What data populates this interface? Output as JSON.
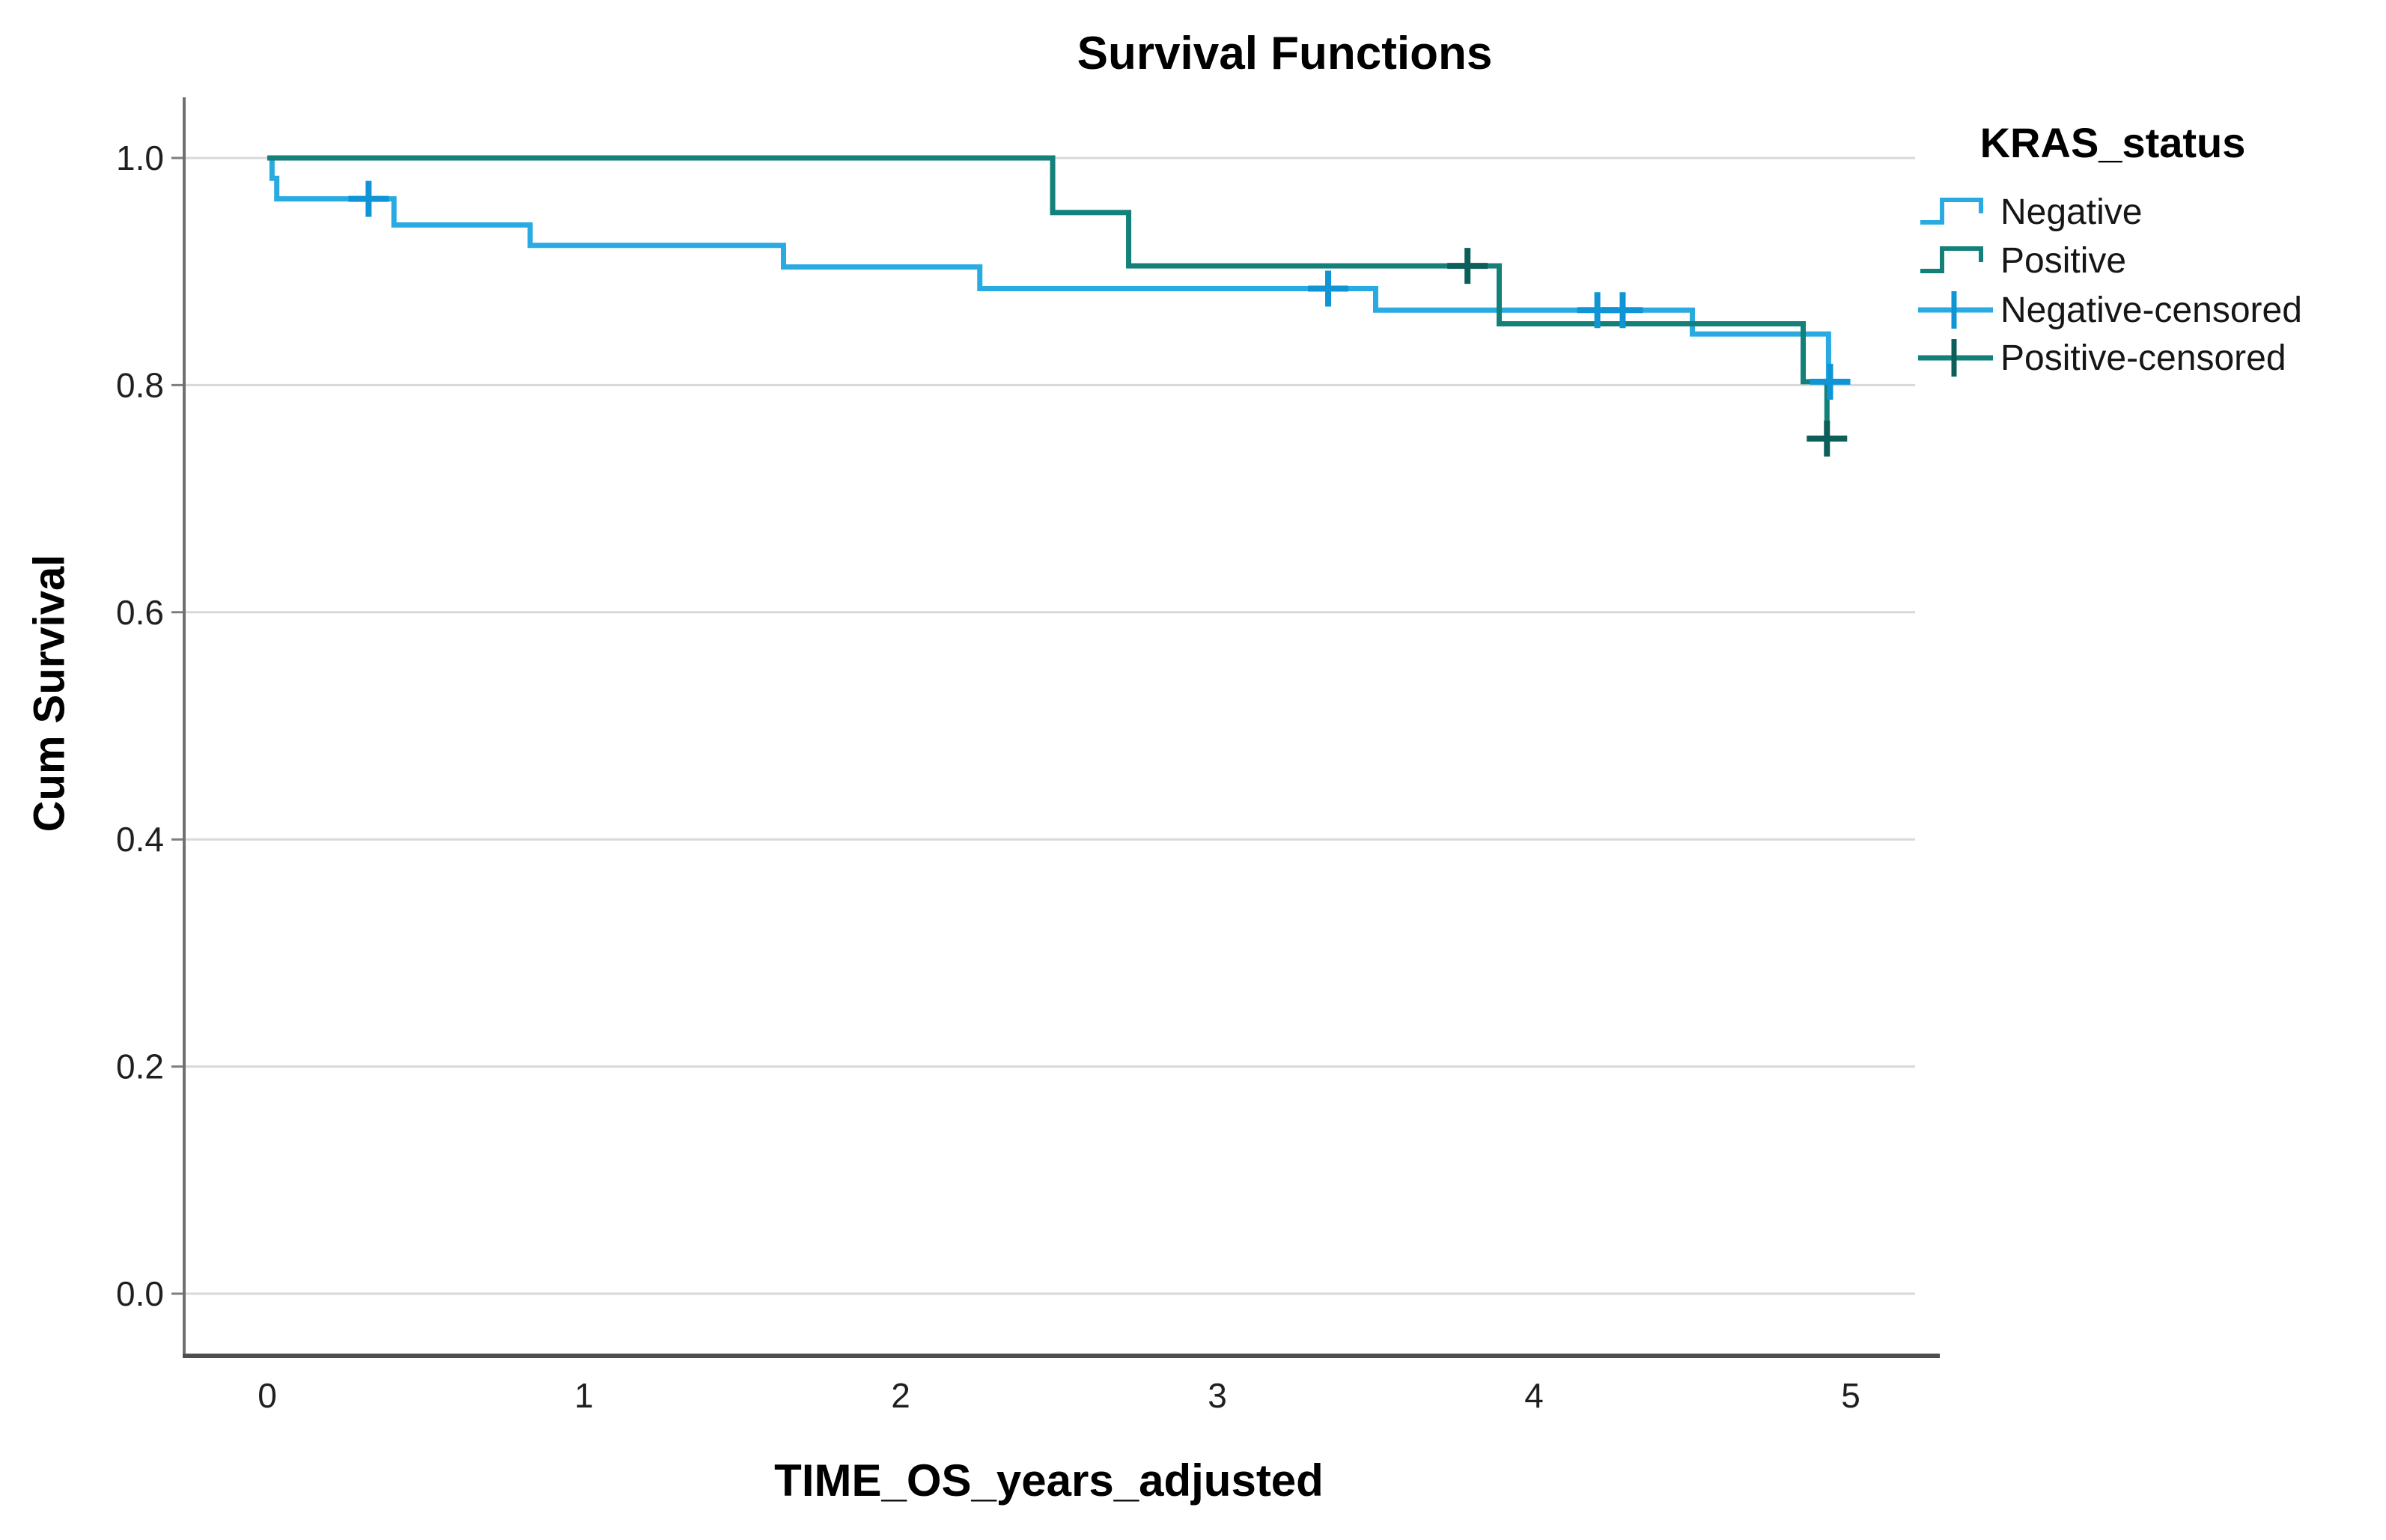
{
  "title": "Survival Functions",
  "legend": {
    "title": "KRAS_status",
    "items": [
      {
        "label": "Negative",
        "type": "line",
        "color": "#29ABE2",
        "cross_color": "#0F95D6"
      },
      {
        "label": "Positive",
        "type": "line",
        "color": "#13807A",
        "cross_color": "#0C5F59"
      },
      {
        "label": "Negative-censored",
        "type": "censored",
        "color": "#29ABE2",
        "cross_color": "#0F95D6"
      },
      {
        "label": "Positive-censored",
        "type": "censored",
        "color": "#13807A",
        "cross_color": "#0C5F59"
      }
    ]
  },
  "colors": {
    "background": "#FFFFFF",
    "gridline": "#D8D8D8",
    "tick": "#7E7E7E",
    "axis_y": "#6F6F6F",
    "axis_x": "#4E4E4E",
    "text": "#1F1F1F"
  },
  "chart_data": {
    "type": "line",
    "subtype": "kaplan-meier-step",
    "title": "Survival Functions",
    "xlabel": "TIME_OS_years_adjusted",
    "ylabel": "Cum Survival",
    "group_variable": "KRAS_status",
    "xlim": [
      0,
      5.28
    ],
    "ylim": [
      -0.05,
      1.05
    ],
    "x_ticks": [
      0,
      1,
      2,
      3,
      4,
      5
    ],
    "y_ticks": [
      0.0,
      0.2,
      0.4,
      0.6,
      0.8,
      1.0
    ],
    "y_tick_labels": [
      "0.0",
      "0.2",
      "0.4",
      "0.6",
      "0.8",
      "1.0"
    ],
    "grid": "horizontal",
    "legend_position": "right",
    "series": [
      {
        "name": "Negative",
        "color": "#29ABE2",
        "censor_color": "#0F95D6",
        "start": [
          0,
          1.0
        ],
        "steps": [
          [
            0.015,
            0.982
          ],
          [
            0.03,
            0.964
          ],
          [
            0.4,
            0.941
          ],
          [
            0.83,
            0.923
          ],
          [
            1.63,
            0.904
          ],
          [
            2.25,
            0.885
          ],
          [
            3.5,
            0.866
          ],
          [
            4.5,
            0.845
          ],
          [
            4.93,
            0.803
          ]
        ],
        "end_t": 4.985,
        "censored": [
          [
            0.32,
            0.964
          ],
          [
            3.35,
            0.885
          ],
          [
            4.2,
            0.866
          ],
          [
            4.28,
            0.866
          ],
          [
            4.935,
            0.803
          ]
        ]
      },
      {
        "name": "Positive",
        "color": "#13807A",
        "censor_color": "#0C5F59",
        "start": [
          0,
          1.0
        ],
        "steps": [
          [
            2.48,
            0.952
          ],
          [
            2.72,
            0.905
          ],
          [
            3.89,
            0.854
          ],
          [
            4.85,
            0.803
          ],
          [
            4.925,
            0.753
          ]
        ],
        "end_t": 4.945,
        "censored": [
          [
            3.79,
            0.905
          ],
          [
            4.925,
            0.753
          ]
        ]
      }
    ]
  }
}
